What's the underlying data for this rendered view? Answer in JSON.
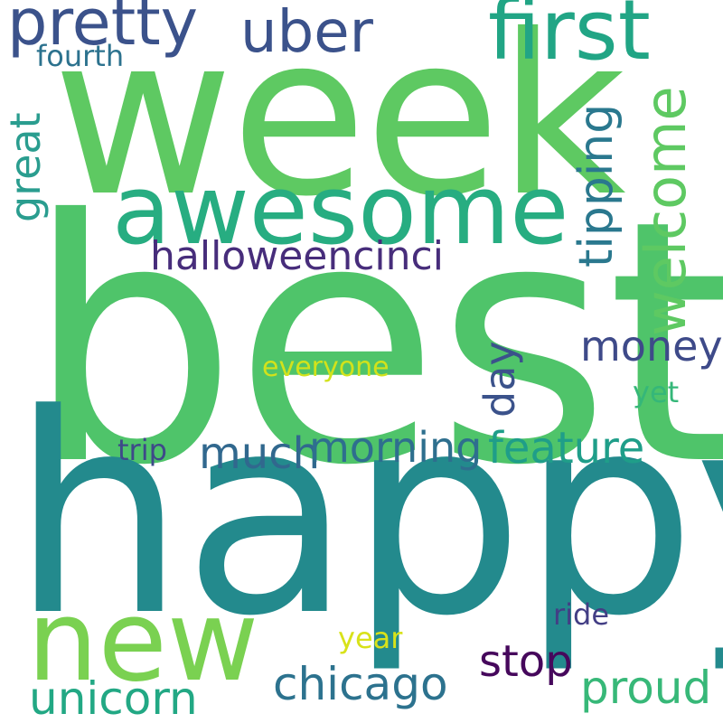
{
  "words": {
    "happy": "happy",
    "best": "best",
    "week": "week",
    "awesome": "awesome",
    "first": "first",
    "pretty": "pretty",
    "uber": "uber",
    "fourth": "fourth",
    "new": "new",
    "welcome": "welcome",
    "tipping": "tipping",
    "great": "great",
    "halloweencinci": "halloweencinci",
    "money": "money",
    "everyone": "everyone",
    "day": "day",
    "yet": "yet",
    "trip": "trip",
    "much": "much",
    "morning": "morning",
    "feature": "feature",
    "stop": "stop",
    "chicago": "chicago",
    "proud": "proud",
    "unicorn": "unicorn",
    "year": "year",
    "ride": "ride"
  },
  "colors": {
    "happy": "#238a8d",
    "best": "#4fc46a",
    "week": "#5ec962",
    "awesome": "#27ad81",
    "first": "#21a585",
    "pretty": "#3b528b",
    "uber": "#3b528b",
    "fourth": "#2c728e",
    "new": "#7ad151",
    "welcome": "#5ec962",
    "tipping": "#2a788e",
    "great": "#2a9d8f",
    "halloweencinci": "#472d7b",
    "money": "#3e4a89",
    "everyone": "#d2e21b",
    "day": "#3b528b",
    "yet": "#35b779",
    "trip": "#3e4989",
    "much": "#31688e",
    "morning": "#2e6f8e",
    "feature": "#1f9e89",
    "stop": "#46085c",
    "chicago": "#2c728e",
    "proud": "#37b878",
    "unicorn": "#22a884",
    "year": "#d8e219",
    "ride": "#433e85"
  }
}
